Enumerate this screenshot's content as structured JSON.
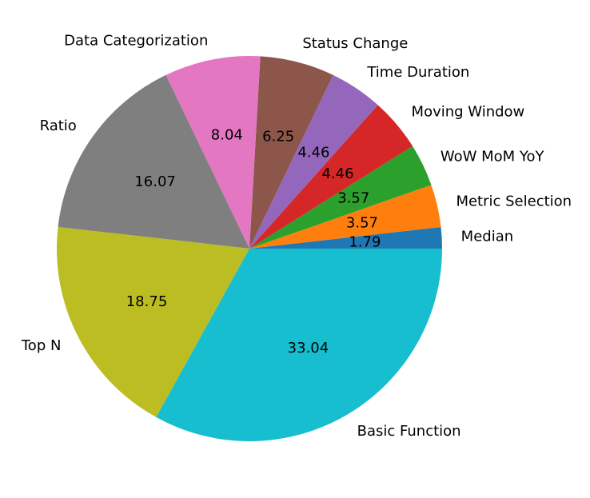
{
  "chart_data": {
    "type": "pie",
    "title": "",
    "start_angle_deg": 0,
    "direction": "counterclockwise",
    "slices": [
      {
        "label": "Median",
        "value": 1.79,
        "color": "#1f77b4"
      },
      {
        "label": "Metric Selection",
        "value": 3.57,
        "color": "#ff7f0e"
      },
      {
        "label": "WoW MoM YoY",
        "value": 3.57,
        "color": "#2ca02c"
      },
      {
        "label": "Moving Window",
        "value": 4.46,
        "color": "#d62728"
      },
      {
        "label": "Time Duration",
        "value": 4.46,
        "color": "#9467bd"
      },
      {
        "label": "Status Change",
        "value": 6.25,
        "color": "#8c564b"
      },
      {
        "label": "Data Categorization",
        "value": 8.04,
        "color": "#e377c2"
      },
      {
        "label": "Ratio",
        "value": 16.07,
        "color": "#7f7f7f"
      },
      {
        "label": "Top N",
        "value": 18.75,
        "color": "#bcbd22"
      },
      {
        "label": "Basic Function",
        "value": 33.04,
        "color": "#17becf"
      }
    ]
  }
}
